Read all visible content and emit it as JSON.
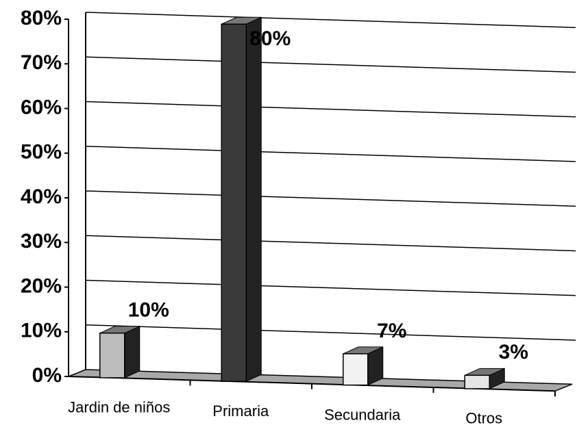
{
  "chart_data": {
    "type": "bar3d",
    "categories": [
      "Jardin de niños",
      "Primaria",
      "Secundaria",
      "Otros"
    ],
    "values": [
      10,
      80,
      7,
      3
    ],
    "value_labels": [
      "10%",
      "80%",
      "7%",
      "3%"
    ],
    "colors": [
      "#bdbdbd",
      "#3a3a3a",
      "#f2f2f2",
      "#e6e6e6"
    ],
    "ylim": [
      0,
      80
    ],
    "yticks": [
      {
        "value": 0,
        "label": "0%"
      },
      {
        "value": 10,
        "label": "10%"
      },
      {
        "value": 20,
        "label": "20%"
      },
      {
        "value": 30,
        "label": "30%"
      },
      {
        "value": 40,
        "label": "40%"
      },
      {
        "value": 50,
        "label": "50%"
      },
      {
        "value": 60,
        "label": "60%"
      },
      {
        "value": 70,
        "label": "70%"
      },
      {
        "value": 80,
        "label": "80%"
      }
    ],
    "grid": true
  }
}
